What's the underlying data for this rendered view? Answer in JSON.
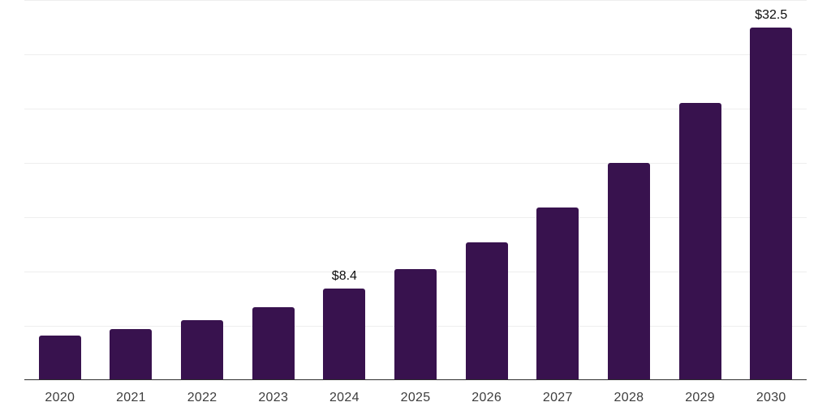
{
  "chart_data": {
    "type": "bar",
    "title": "",
    "xlabel": "",
    "ylabel": "",
    "categories": [
      "2020",
      "2021",
      "2022",
      "2023",
      "2024",
      "2025",
      "2026",
      "2027",
      "2028",
      "2029",
      "2030"
    ],
    "values": [
      4.1,
      4.7,
      5.5,
      6.7,
      8.4,
      10.2,
      12.7,
      15.9,
      20.0,
      25.5,
      32.5
    ],
    "data_labels": [
      "",
      "",
      "",
      "",
      "$8.4",
      "",
      "",
      "",
      "",
      "",
      "$32.5"
    ],
    "ylim": [
      0,
      35
    ],
    "grid": true,
    "grid_values": [
      5,
      10,
      15,
      20,
      25,
      30,
      35
    ],
    "legend": false,
    "colors": {
      "bar": "#38124E",
      "grid": "#EEEEEE",
      "axis": "#2E2E2E",
      "tick_label": "#3D3D3D",
      "value_label": "#0D0D0D",
      "background": "#FFFFFF"
    }
  }
}
